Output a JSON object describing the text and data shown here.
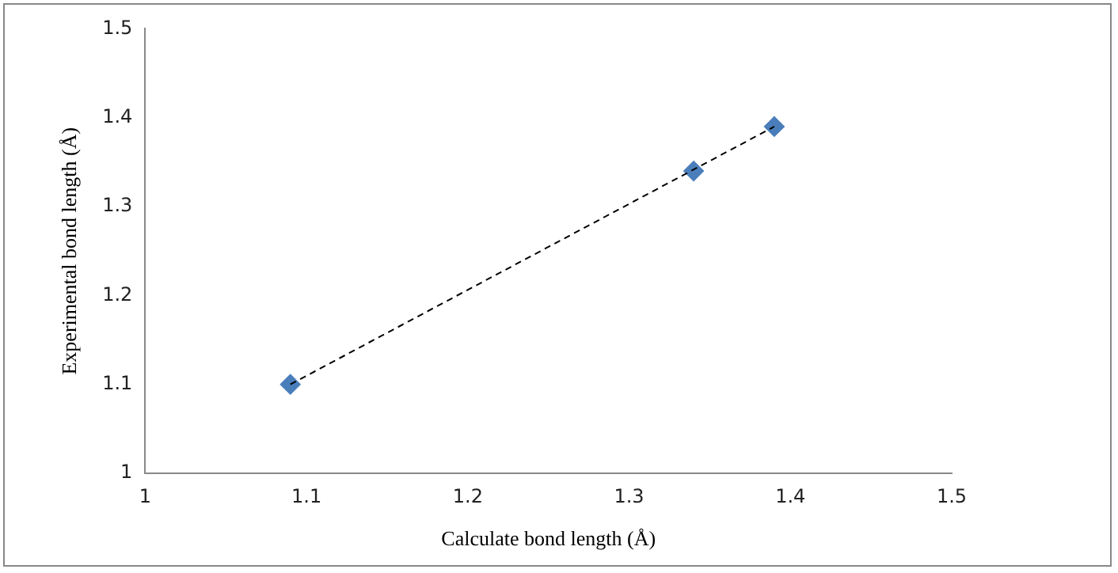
{
  "chart_data": {
    "type": "scatter",
    "xlabel": "Calculate bond length (Å)",
    "ylabel": "Experimental bond length (Å)",
    "x": [
      1.09,
      1.34,
      1.39
    ],
    "series": [
      {
        "color": "#4a7ebb",
        "values": [
          1.1,
          1.34,
          1.39
        ],
        "marker": "diamond"
      },
      {
        "type": "line",
        "x": [
          1.09,
          1.39
        ],
        "values": [
          1.1,
          1.39
        ],
        "color": "#000000",
        "line_style": "dashed",
        "marker": "none"
      }
    ],
    "xlim": [
      1,
      1.5
    ],
    "ylim": [
      1,
      1.5
    ],
    "xticks": [
      1,
      1.1,
      1.2,
      1.3,
      1.4,
      1.5
    ],
    "yticks": [
      1,
      1.1,
      1.2,
      1.3,
      1.4,
      1.5
    ],
    "grid": false,
    "legend": false
  }
}
